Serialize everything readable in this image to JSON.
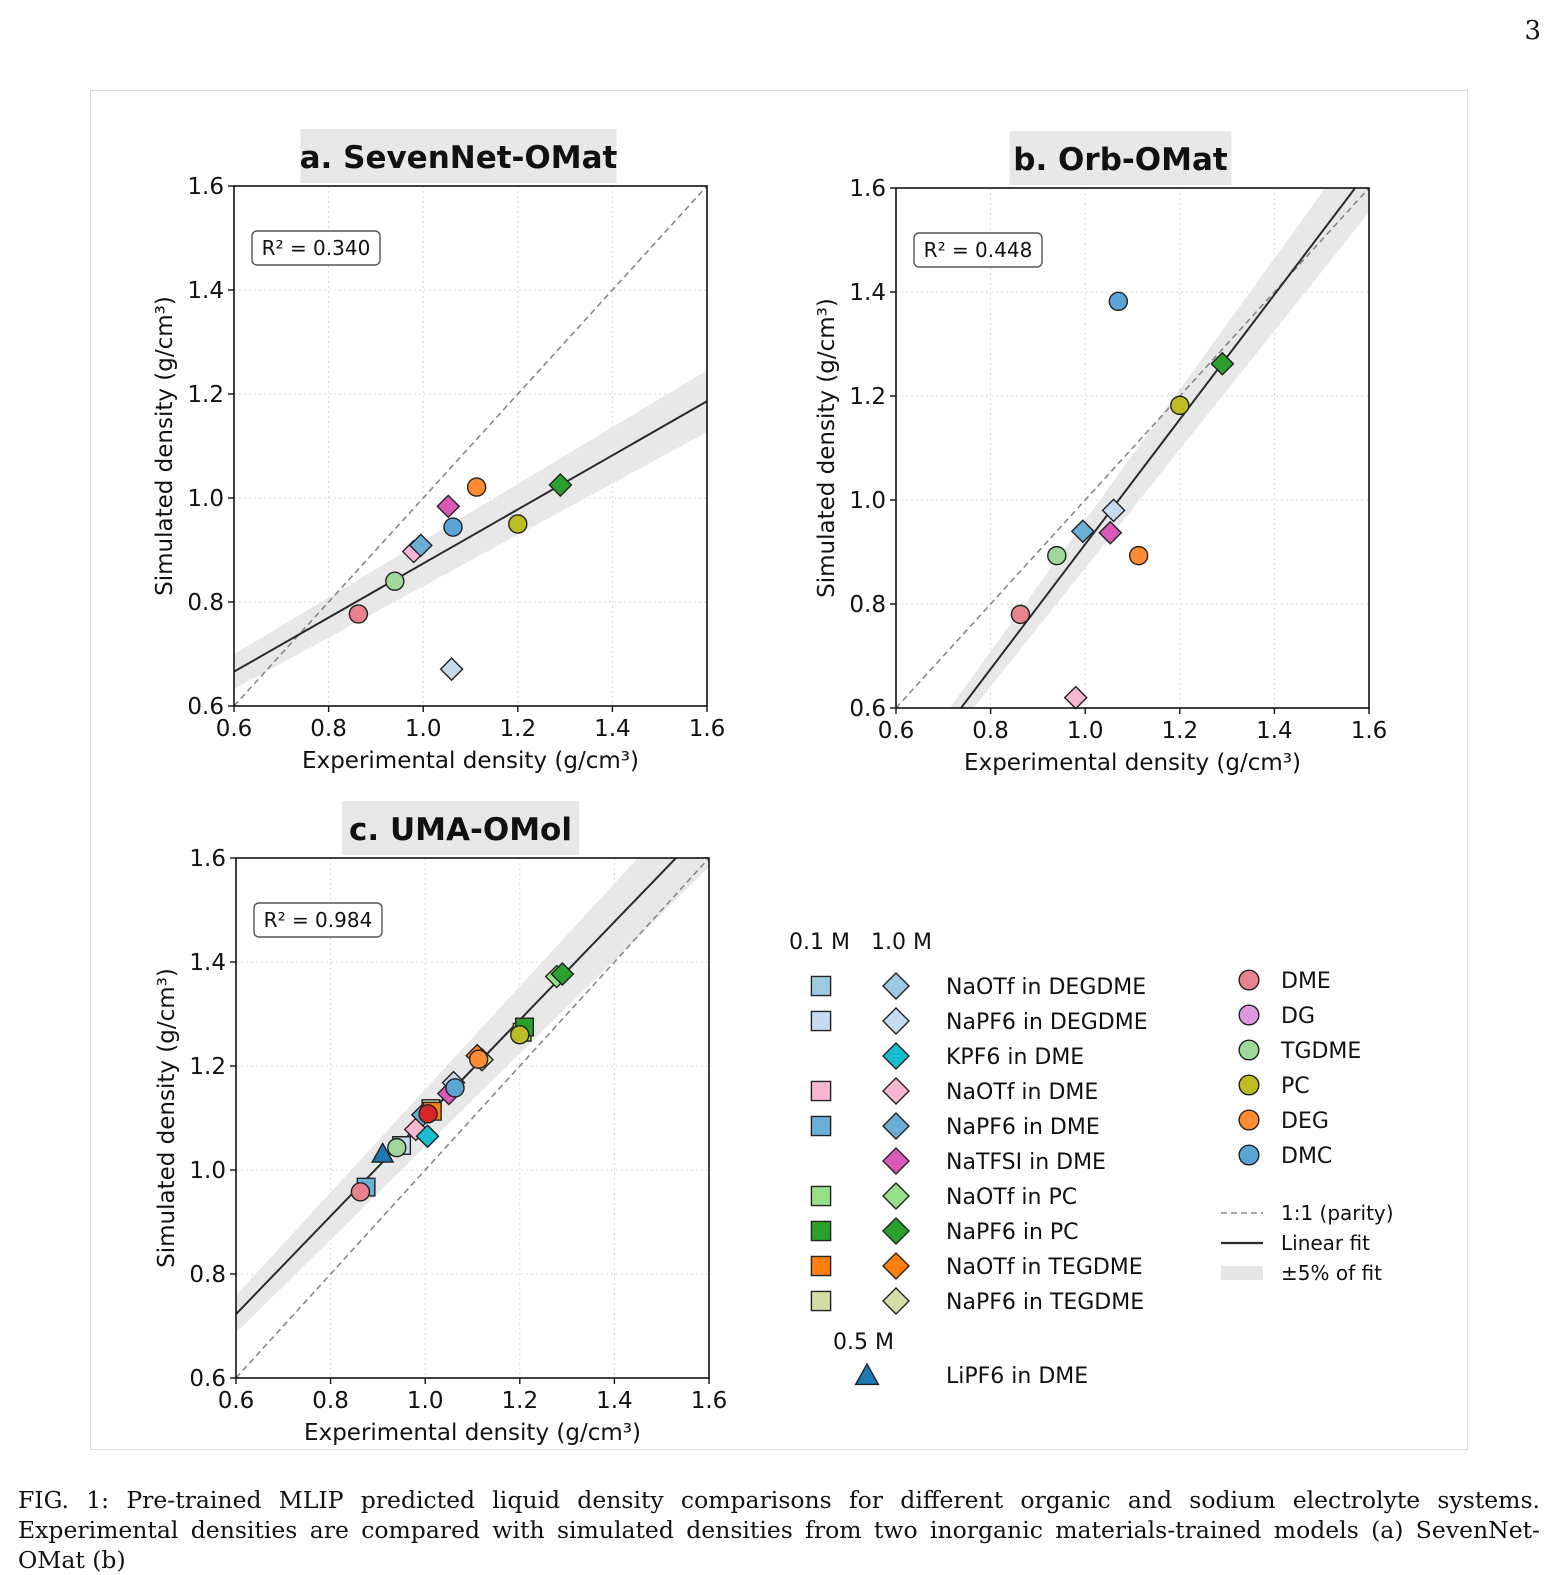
{
  "page_number": "3",
  "caption": "FIG. 1: Pre-trained MLIP predicted liquid density comparisons for different organic and sodium electrolyte systems. Experimental densities are compared with simulated densities from two inorganic materials-trained models (a) SevenNet-OMat (b)",
  "colors": {
    "parity": "#888888",
    "fit": "#2b2b2b",
    "band": "#e6e6e6",
    "DME": "#e8828e",
    "DG": "#dd99dd",
    "TGDME": "#9fd89a",
    "PC": "#bcbd22",
    "DEG": "#ff8c33",
    "DMC": "#5aa5d6",
    "NaOTf_DEGDME": "#9ecae1",
    "NaPF6_DEGDME": "#c6dbef",
    "KPF6_DME": "#17becf",
    "NaOTf_DME": "#f7b6d2",
    "NaPF6_DME": "#6baed6",
    "NaTFSI_DME": "#d85ab6",
    "NaOTf_PC": "#98df8a",
    "NaPF6_PC": "#2ca02c",
    "NaOTf_TEGDME": "#ff7f0e",
    "NaPF6_TEGDME": "#d4dca6",
    "LiPF6_DME": "#1f77b4",
    "red_marker": "#d62728"
  },
  "chart_data": [
    {
      "type": "scatter",
      "title": "a. SevenNet-OMat",
      "xlabel": "Experimental density (g/cm³)",
      "ylabel": "Simulated density (g/cm³)",
      "xlim": [
        0.6,
        1.6
      ],
      "ylim": [
        0.6,
        1.6
      ],
      "ticks": [
        "0.6",
        "0.8",
        "1.0",
        "1.2",
        "1.4",
        "1.6"
      ],
      "r2_label": "R² = 0.340",
      "grid": true,
      "fit": {
        "slope": 0.52,
        "intercept": 0.354
      },
      "points": [
        {
          "series": "DME",
          "marker": "circle",
          "color": "#e8828e",
          "x": 0.863,
          "y": 0.777
        },
        {
          "series": "TGDME",
          "marker": "circle",
          "color": "#9fd89a",
          "x": 0.94,
          "y": 0.84
        },
        {
          "series": "NaOTf in DME",
          "marker": "diamond",
          "color": "#f7b6d2",
          "x": 0.98,
          "y": 0.897
        },
        {
          "series": "NaPF6 in DME",
          "marker": "diamond",
          "color": "#6baed6",
          "x": 0.995,
          "y": 0.909
        },
        {
          "series": "NaTFSI in DME",
          "marker": "diamond",
          "color": "#d85ab6",
          "x": 1.053,
          "y": 0.984
        },
        {
          "series": "DMC",
          "marker": "circle",
          "color": "#5aa5d6",
          "x": 1.063,
          "y": 0.944
        },
        {
          "series": "NaPF6 in DEGDME",
          "marker": "diamond",
          "color": "#c6dbef",
          "x": 1.06,
          "y": 0.671
        },
        {
          "series": "DEG",
          "marker": "circle",
          "color": "#ff8c33",
          "x": 1.113,
          "y": 1.021
        },
        {
          "series": "PC",
          "marker": "circle",
          "color": "#bcbd22",
          "x": 1.2,
          "y": 0.95
        },
        {
          "series": "NaPF6 in PC",
          "marker": "diamond",
          "color": "#2ca02c",
          "x": 1.29,
          "y": 1.025
        }
      ]
    },
    {
      "type": "scatter",
      "title": "b. Orb-OMat",
      "xlabel": "Experimental density (g/cm³)",
      "ylabel": "Simulated density (g/cm³)",
      "xlim": [
        0.6,
        1.6
      ],
      "ylim": [
        0.6,
        1.6
      ],
      "ticks": [
        "0.6",
        "0.8",
        "1.0",
        "1.2",
        "1.4",
        "1.6"
      ],
      "r2_label": "R² = 0.448",
      "grid": true,
      "fit": {
        "slope": 1.2,
        "intercept": -0.285
      },
      "points": [
        {
          "series": "DME",
          "marker": "circle",
          "color": "#e8828e",
          "x": 0.863,
          "y": 0.78
        },
        {
          "series": "TGDME",
          "marker": "circle",
          "color": "#9fd89a",
          "x": 0.94,
          "y": 0.893
        },
        {
          "series": "NaOTf in DME",
          "marker": "diamond",
          "color": "#f7b6d2",
          "x": 0.98,
          "y": 0.62
        },
        {
          "series": "NaPF6 in DME",
          "marker": "diamond",
          "color": "#6baed6",
          "x": 0.995,
          "y": 0.94
        },
        {
          "series": "NaTFSI in DME",
          "marker": "diamond",
          "color": "#d85ab6",
          "x": 1.053,
          "y": 0.937
        },
        {
          "series": "NaPF6 in DEGDME",
          "marker": "diamond",
          "color": "#c6dbef",
          "x": 1.06,
          "y": 0.98
        },
        {
          "series": "DMC",
          "marker": "circle",
          "color": "#5aa5d6",
          "x": 1.07,
          "y": 1.382
        },
        {
          "series": "DEG",
          "marker": "circle",
          "color": "#ff8c33",
          "x": 1.113,
          "y": 0.893
        },
        {
          "series": "PC",
          "marker": "circle",
          "color": "#bcbd22",
          "x": 1.2,
          "y": 1.182
        },
        {
          "series": "NaPF6 in PC",
          "marker": "diamond",
          "color": "#2ca02c",
          "x": 1.29,
          "y": 1.262
        }
      ]
    },
    {
      "type": "scatter",
      "title": "c. UMA-OMol",
      "xlabel": "Experimental density (g/cm³)",
      "ylabel": "Simulated density (g/cm³)",
      "xlim": [
        0.6,
        1.6
      ],
      "ylim": [
        0.6,
        1.6
      ],
      "ticks": [
        "0.6",
        "0.8",
        "1.0",
        "1.2",
        "1.4",
        "1.6"
      ],
      "r2_label": "R² = 0.984",
      "grid": true,
      "fit": {
        "slope": 0.943,
        "intercept": 0.157
      },
      "points": [
        {
          "series": "NaPF6 in DME",
          "marker": "square",
          "color": "#6baed6",
          "x": 0.875,
          "y": 0.967
        },
        {
          "series": "DME",
          "marker": "circle",
          "color": "#e8828e",
          "x": 0.863,
          "y": 0.958
        },
        {
          "series": "LiPF6 in DME",
          "marker": "triangle",
          "color": "#1f77b4",
          "x": 0.91,
          "y": 1.03
        },
        {
          "series": "NaPF6 in DEGDME",
          "marker": "square",
          "color": "#c6dbef",
          "x": 0.95,
          "y": 1.047
        },
        {
          "series": "TGDME",
          "marker": "circle",
          "color": "#9fd89a",
          "x": 0.94,
          "y": 1.043
        },
        {
          "series": "NaOTf in DME",
          "marker": "diamond",
          "color": "#f7b6d2",
          "x": 0.98,
          "y": 1.078
        },
        {
          "series": "NaPF6 in DME",
          "marker": "diamond",
          "color": "#6baed6",
          "x": 0.995,
          "y": 1.106
        },
        {
          "series": "KPF6 in DME",
          "marker": "diamond",
          "color": "#17becf",
          "x": 1.005,
          "y": 1.065
        },
        {
          "series": "NaPF6 in TEGDME",
          "marker": "square",
          "color": "#d4dca6",
          "x": 1.012,
          "y": 1.118
        },
        {
          "series": "NaOTf in TEGDME",
          "marker": "square",
          "color": "#ff7f0e",
          "x": 1.015,
          "y": 1.113
        },
        {
          "series": "DG",
          "marker": "circle",
          "color": "#d62728",
          "x": 1.006,
          "y": 1.108
        },
        {
          "series": "NaTFSI in DME",
          "marker": "diamond",
          "color": "#d85ab6",
          "x": 1.05,
          "y": 1.147
        },
        {
          "series": "NaPF6 in DEGDME",
          "marker": "diamond",
          "color": "#c6dbef",
          "x": 1.06,
          "y": 1.168
        },
        {
          "series": "DMC",
          "marker": "circle",
          "color": "#5aa5d6",
          "x": 1.063,
          "y": 1.158
        },
        {
          "series": "NaOTf in TEGDME",
          "marker": "diamond",
          "color": "#ff7f0e",
          "x": 1.11,
          "y": 1.22
        },
        {
          "series": "NaPF6 in TEGDME",
          "marker": "diamond",
          "color": "#d4dca6",
          "x": 1.12,
          "y": 1.212
        },
        {
          "series": "DEG",
          "marker": "circle",
          "color": "#ff8c33",
          "x": 1.113,
          "y": 1.213
        },
        {
          "series": "NaOTf in PC",
          "marker": "square",
          "color": "#98df8a",
          "x": 1.205,
          "y": 1.265
        },
        {
          "series": "NaPF6 in PC",
          "marker": "square",
          "color": "#2ca02c",
          "x": 1.21,
          "y": 1.275
        },
        {
          "series": "PC",
          "marker": "circle",
          "color": "#bcbd22",
          "x": 1.2,
          "y": 1.26
        },
        {
          "series": "NaOTf in PC",
          "marker": "diamond",
          "color": "#98df8a",
          "x": 1.278,
          "y": 1.372
        },
        {
          "series": "NaPF6 in PC",
          "marker": "diamond",
          "color": "#2ca02c",
          "x": 1.29,
          "y": 1.377
        }
      ]
    }
  ],
  "legend": {
    "conc_header_a": "0.1 M",
    "conc_header_b": "1.0 M",
    "conc_header_c": "0.5 M",
    "salt_rows": [
      {
        "label": "NaOTf in DEGDME",
        "color": "#9ecae1",
        "square": true,
        "diamond": true
      },
      {
        "label": "NaPF6 in DEGDME",
        "color": "#c6dbef",
        "square": true,
        "diamond": true
      },
      {
        "label": "KPF6 in DME",
        "color": "#17becf",
        "square": false,
        "diamond": true
      },
      {
        "label": "NaOTf in DME",
        "color": "#f7b6d2",
        "square": true,
        "diamond": true
      },
      {
        "label": "NaPF6 in DME",
        "color": "#6baed6",
        "square": true,
        "diamond": true
      },
      {
        "label": "NaTFSI in DME",
        "color": "#d85ab6",
        "square": false,
        "diamond": true
      },
      {
        "label": "NaOTf in PC",
        "color": "#98df8a",
        "square": true,
        "diamond": true
      },
      {
        "label": "NaPF6 in PC",
        "color": "#2ca02c",
        "square": true,
        "diamond": true
      },
      {
        "label": "NaOTf in TEGDME",
        "color": "#ff7f0e",
        "square": true,
        "diamond": true
      },
      {
        "label": "NaPF6 in TEGDME",
        "color": "#d4dca6",
        "square": true,
        "diamond": true
      }
    ],
    "lipf6": {
      "label": "LiPF6 in DME",
      "color": "#1f77b4"
    },
    "solvents": [
      {
        "label": "DME",
        "color": "#e8828e"
      },
      {
        "label": "DG",
        "color": "#dd99dd"
      },
      {
        "label": "TGDME",
        "color": "#9fd89a"
      },
      {
        "label": "PC",
        "color": "#bcbd22"
      },
      {
        "label": "DEG",
        "color": "#ff8c33"
      },
      {
        "label": "DMC",
        "color": "#5aa5d6"
      }
    ],
    "lines": [
      {
        "label": "1:1 (parity)",
        "style": "dashed"
      },
      {
        "label": "Linear fit",
        "style": "solid"
      },
      {
        "label": "±5% of fit",
        "style": "band"
      }
    ]
  }
}
